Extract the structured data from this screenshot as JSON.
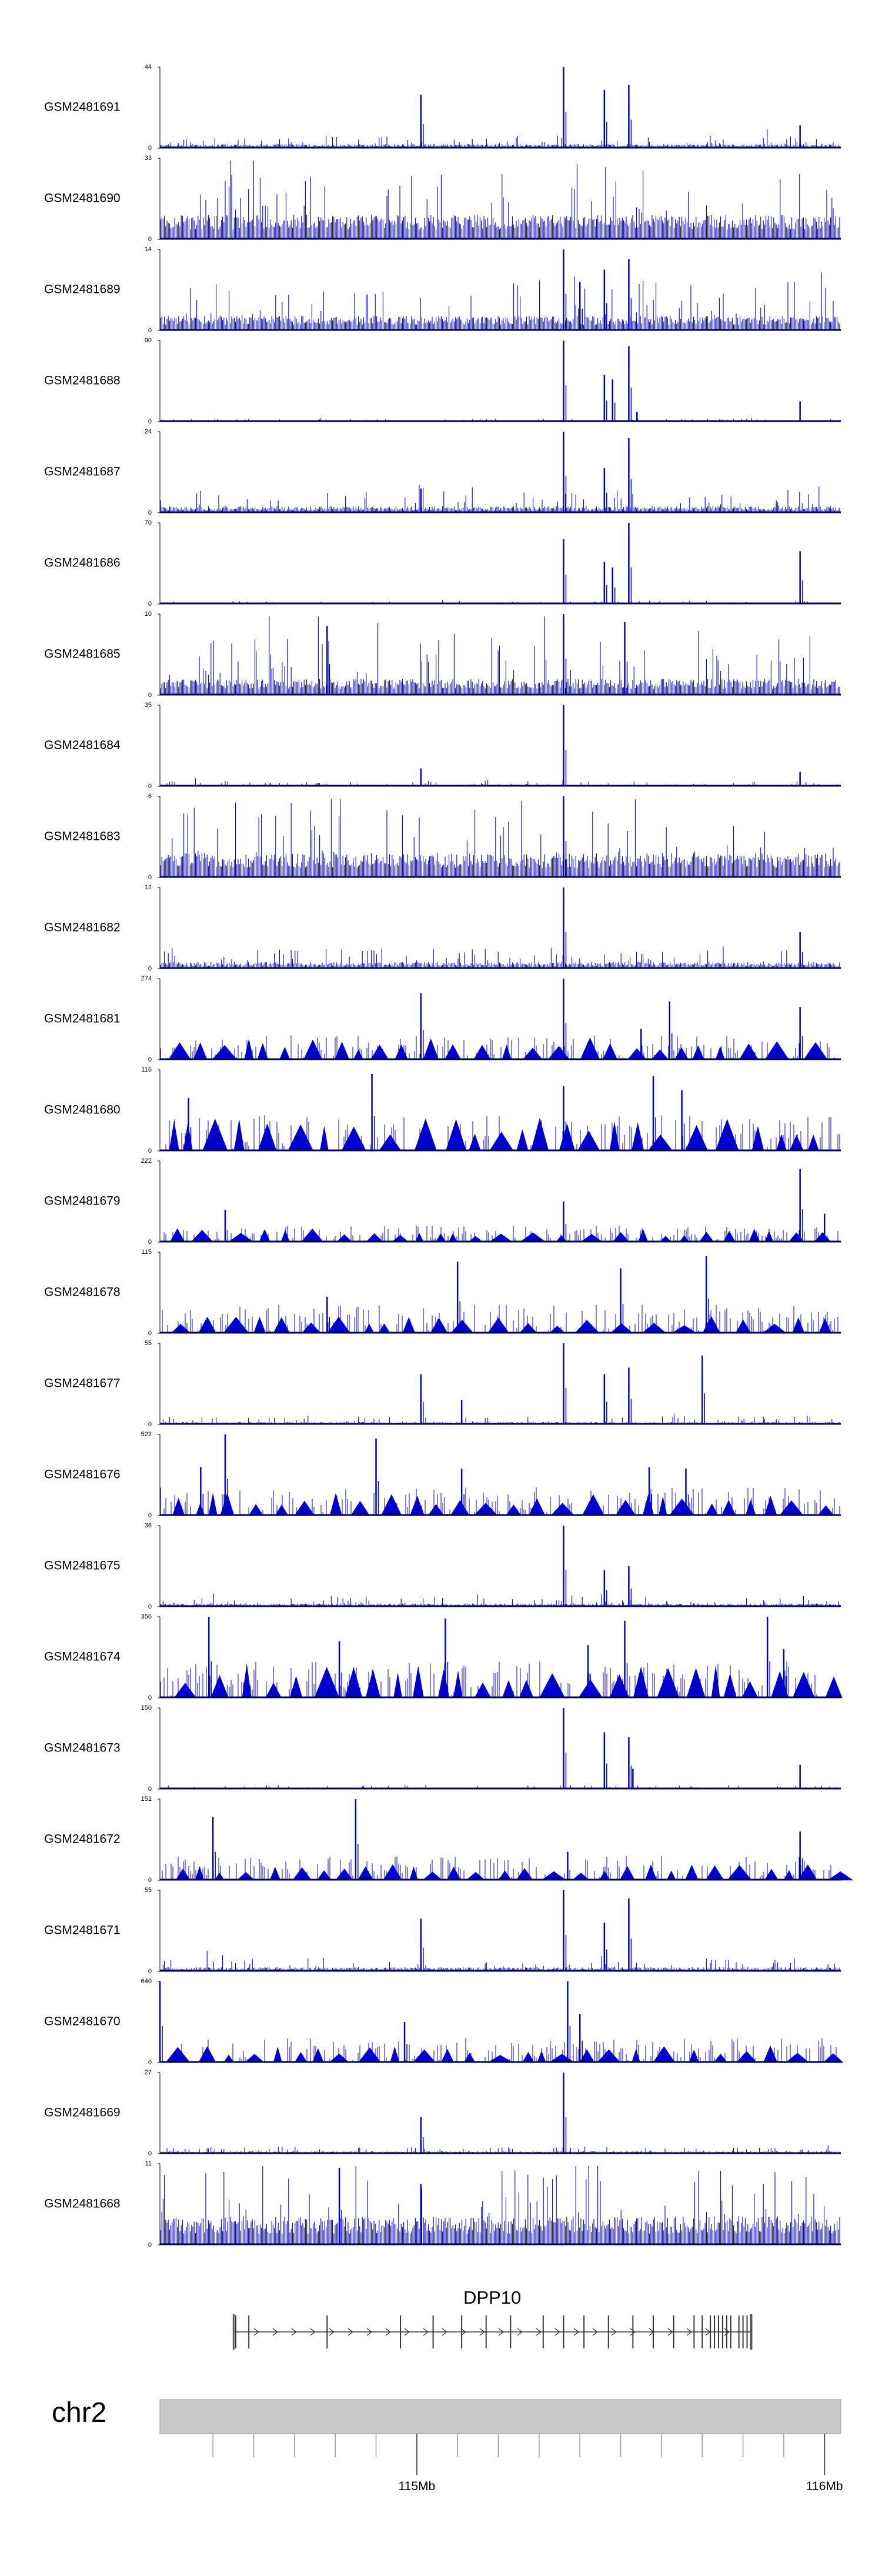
{
  "chart_data": {
    "type": "area",
    "title": "",
    "xlabel": "",
    "ylabel": "",
    "chromosome": "chr2",
    "xlim_mb": [
      114.37,
      116.04
    ],
    "axis_labels": [
      {
        "value": 115,
        "label": "115Mb"
      },
      {
        "value": 116,
        "label": "116Mb"
      }
    ],
    "gene": {
      "name": "DPP10",
      "start_mb": 114.55,
      "end_mb": 115.82,
      "exons_mb": [
        114.556,
        114.588,
        114.78,
        114.96,
        115.04,
        115.11,
        115.17,
        115.23,
        115.31,
        115.36,
        115.41,
        115.47,
        115.53,
        115.58,
        115.63,
        115.68,
        115.7,
        115.72,
        115.73,
        115.74,
        115.75,
        115.76,
        115.77,
        115.79,
        115.8,
        115.81
      ]
    },
    "colors": {
      "track": "#0000cc",
      "baseline": "#000066",
      "gene": "#333333",
      "ideogram": "#c8c8c8"
    },
    "series": [
      {
        "name": "GSM2481691",
        "ymax": 44,
        "ymin": 0,
        "style": "dense",
        "base": 0.05,
        "noise": 0.12,
        "spikes": [
          [
            115.36,
            1.0
          ],
          [
            115.46,
            0.72
          ],
          [
            115.52,
            0.78
          ],
          [
            115.01,
            0.66
          ],
          [
            115.94,
            0.28
          ]
        ]
      },
      {
        "name": "GSM2481690",
        "ymax": 33,
        "ymin": 0,
        "style": "dense",
        "base": 0.3,
        "noise": 0.7,
        "spikes": []
      },
      {
        "name": "GSM2481689",
        "ymax": 14,
        "ymin": 0,
        "style": "dense",
        "base": 0.18,
        "noise": 0.45,
        "spikes": [
          [
            115.36,
            1.0
          ],
          [
            115.46,
            0.75
          ],
          [
            115.52,
            0.88
          ],
          [
            115.4,
            0.6
          ]
        ]
      },
      {
        "name": "GSM2481688",
        "ymax": 90,
        "ymin": 0,
        "style": "dense",
        "base": 0.01,
        "noise": 0.03,
        "spikes": [
          [
            115.36,
            1.0
          ],
          [
            115.46,
            0.58
          ],
          [
            115.48,
            0.52
          ],
          [
            115.52,
            0.93
          ],
          [
            115.54,
            0.12
          ],
          [
            115.94,
            0.25
          ]
        ]
      },
      {
        "name": "GSM2481687",
        "ymax": 24,
        "ymin": 0,
        "style": "dense",
        "base": 0.08,
        "noise": 0.22,
        "spikes": [
          [
            115.36,
            1.0
          ],
          [
            115.46,
            0.55
          ],
          [
            115.52,
            0.92
          ],
          [
            115.01,
            0.3
          ]
        ]
      },
      {
        "name": "GSM2481686",
        "ymax": 70,
        "ymin": 0,
        "style": "dense",
        "base": 0.01,
        "noise": 0.03,
        "spikes": [
          [
            115.36,
            0.8
          ],
          [
            115.46,
            0.52
          ],
          [
            115.48,
            0.45
          ],
          [
            115.52,
            1.0
          ],
          [
            115.94,
            0.65
          ]
        ]
      },
      {
        "name": "GSM2481685",
        "ymax": 10,
        "ymin": 0,
        "style": "dense",
        "base": 0.2,
        "noise": 0.6,
        "spikes": [
          [
            115.36,
            1.0
          ],
          [
            114.78,
            0.85
          ],
          [
            115.51,
            0.9
          ]
        ]
      },
      {
        "name": "GSM2481684",
        "ymax": 35,
        "ymin": 0,
        "style": "dense",
        "base": 0.02,
        "noise": 0.05,
        "spikes": [
          [
            115.36,
            1.0
          ],
          [
            115.01,
            0.22
          ],
          [
            115.94,
            0.18
          ]
        ]
      },
      {
        "name": "GSM2481683",
        "ymax": 6,
        "ymin": 0,
        "style": "dense",
        "base": 0.3,
        "noise": 0.7,
        "spikes": [
          [
            115.36,
            1.0
          ]
        ]
      },
      {
        "name": "GSM2481682",
        "ymax": 12,
        "ymin": 0,
        "style": "dense",
        "base": 0.08,
        "noise": 0.2,
        "spikes": [
          [
            115.36,
            1.0
          ],
          [
            115.94,
            0.45
          ]
        ]
      },
      {
        "name": "GSM2481681",
        "ymax": 274,
        "ymin": 0,
        "style": "tri",
        "base": 0.2,
        "noise": 0.3,
        "spikes": [
          [
            115.01,
            0.82
          ],
          [
            115.36,
            1.0
          ],
          [
            115.62,
            0.72
          ],
          [
            115.94,
            0.65
          ],
          [
            115.55,
            0.38
          ]
        ]
      },
      {
        "name": "GSM2481680",
        "ymax": 116,
        "ymin": 0,
        "style": "tri",
        "base": 0.3,
        "noise": 0.45,
        "spikes": [
          [
            114.89,
            0.95
          ],
          [
            115.58,
            0.92
          ],
          [
            115.36,
            0.8
          ],
          [
            115.65,
            0.75
          ],
          [
            114.44,
            0.65
          ]
        ]
      },
      {
        "name": "GSM2481679",
        "ymax": 222,
        "ymin": 0,
        "style": "tri",
        "base": 0.12,
        "noise": 0.2,
        "spikes": [
          [
            115.94,
            0.9
          ],
          [
            116.0,
            0.35
          ],
          [
            114.53,
            0.4
          ],
          [
            115.36,
            0.5
          ]
        ]
      },
      {
        "name": "GSM2481678",
        "ymax": 115,
        "ymin": 0,
        "style": "tri",
        "base": 0.15,
        "noise": 0.35,
        "spikes": [
          [
            115.71,
            0.95
          ],
          [
            115.1,
            0.88
          ],
          [
            115.5,
            0.8
          ],
          [
            114.78,
            0.45
          ]
        ]
      },
      {
        "name": "GSM2481677",
        "ymax": 55,
        "ymin": 0,
        "style": "dense",
        "base": 0.03,
        "noise": 0.08,
        "spikes": [
          [
            115.36,
            1.0
          ],
          [
            115.46,
            0.62
          ],
          [
            115.52,
            0.7
          ],
          [
            115.7,
            0.85
          ],
          [
            115.01,
            0.62
          ],
          [
            115.11,
            0.3
          ]
        ]
      },
      {
        "name": "GSM2481676",
        "ymax": 522,
        "ymin": 0,
        "style": "tri",
        "base": 0.2,
        "noise": 0.35,
        "spikes": [
          [
            114.53,
            1.0
          ],
          [
            114.9,
            0.95
          ],
          [
            114.47,
            0.6
          ],
          [
            115.11,
            0.58
          ],
          [
            115.66,
            0.58
          ],
          [
            115.57,
            0.6
          ]
        ]
      },
      {
        "name": "GSM2481675",
        "ymax": 36,
        "ymin": 0,
        "style": "dense",
        "base": 0.04,
        "noise": 0.1,
        "spikes": [
          [
            115.36,
            1.0
          ],
          [
            115.46,
            0.45
          ],
          [
            115.52,
            0.5
          ]
        ]
      },
      {
        "name": "GSM2481674",
        "ymax": 356,
        "ymin": 0,
        "style": "tri",
        "base": 0.3,
        "noise": 0.45,
        "spikes": [
          [
            114.49,
            1.0
          ],
          [
            115.86,
            1.0
          ],
          [
            115.07,
            0.98
          ],
          [
            115.51,
            0.95
          ],
          [
            114.81,
            0.7
          ],
          [
            115.42,
            0.65
          ],
          [
            115.9,
            0.6
          ]
        ]
      },
      {
        "name": "GSM2481673",
        "ymax": 150,
        "ymin": 0,
        "style": "dense",
        "base": 0.01,
        "noise": 0.04,
        "spikes": [
          [
            115.36,
            1.0
          ],
          [
            115.46,
            0.7
          ],
          [
            115.52,
            0.64
          ],
          [
            115.53,
            0.25
          ],
          [
            115.94,
            0.3
          ]
        ]
      },
      {
        "name": "GSM2481672",
        "ymax": 151,
        "ymin": 0,
        "style": "tri",
        "base": 0.15,
        "noise": 0.3,
        "spikes": [
          [
            114.85,
            1.0
          ],
          [
            114.5,
            0.78
          ],
          [
            115.94,
            0.6
          ],
          [
            115.37,
            0.35
          ]
        ]
      },
      {
        "name": "GSM2481671",
        "ymax": 55,
        "ymin": 0,
        "style": "dense",
        "base": 0.05,
        "noise": 0.12,
        "spikes": [
          [
            115.36,
            1.0
          ],
          [
            115.46,
            0.6
          ],
          [
            115.52,
            0.9
          ],
          [
            115.01,
            0.65
          ]
        ]
      },
      {
        "name": "GSM2481670",
        "ymax": 640,
        "ymin": 0,
        "style": "tri",
        "base": 0.15,
        "noise": 0.3,
        "spikes": [
          [
            114.37,
            1.0
          ],
          [
            115.37,
            1.0
          ],
          [
            115.4,
            0.6
          ],
          [
            114.97,
            0.5
          ]
        ]
      },
      {
        "name": "GSM2481669",
        "ymax": 27,
        "ymin": 0,
        "style": "dense",
        "base": 0.03,
        "noise": 0.06,
        "spikes": [
          [
            115.36,
            1.0
          ],
          [
            115.01,
            0.45
          ]
        ]
      },
      {
        "name": "GSM2481668",
        "ymax": 11,
        "ymin": 0,
        "style": "dense",
        "base": 0.35,
        "noise": 0.75,
        "spikes": [
          [
            114.81,
            0.95
          ],
          [
            115.01,
            0.75
          ]
        ]
      }
    ]
  }
}
